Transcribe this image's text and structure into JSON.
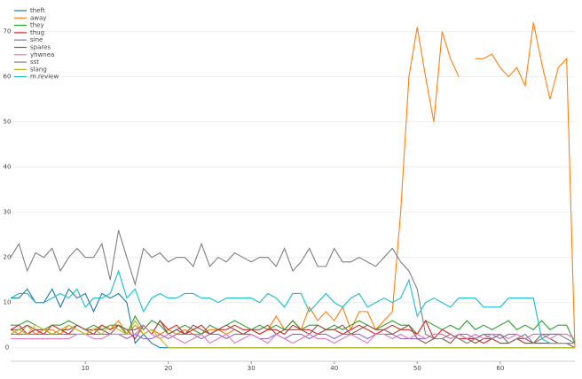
{
  "chart_data": {
    "type": "line",
    "x": [
      1,
      2,
      3,
      4,
      5,
      6,
      7,
      8,
      9,
      10,
      11,
      12,
      13,
      14,
      15,
      16,
      17,
      18,
      19,
      20,
      21,
      22,
      23,
      24,
      25,
      26,
      27,
      28,
      29,
      30,
      31,
      32,
      33,
      34,
      35,
      36,
      37,
      38,
      39,
      40,
      41,
      42,
      43,
      44,
      45,
      46,
      47,
      48,
      49,
      50,
      51,
      52,
      53,
      54,
      55,
      56,
      57,
      58,
      59,
      60,
      61,
      62,
      63,
      64,
      65,
      66,
      67,
      68,
      69
    ],
    "xlim": [
      1,
      69
    ],
    "xticks": [
      10,
      20,
      30,
      40,
      50,
      60
    ],
    "ylim": [
      -3,
      76
    ],
    "yticks": [
      0,
      10,
      20,
      30,
      40,
      50,
      60,
      70
    ],
    "grid": true,
    "legend": "upper left",
    "series": [
      {
        "name": "theft",
        "color": "#1f77b4",
        "values": [
          11,
          11,
          13,
          10,
          10,
          13,
          9,
          13,
          11,
          12,
          8,
          12,
          11,
          12,
          10,
          1,
          3,
          1,
          0,
          0,
          0,
          0,
          0,
          0,
          0,
          0,
          0,
          0,
          0,
          0,
          0,
          0,
          0,
          0,
          0,
          0,
          0,
          0,
          0,
          0,
          0,
          0,
          0,
          0,
          0,
          0,
          0,
          0,
          0,
          0,
          0,
          0,
          0,
          0,
          0,
          0,
          0,
          0,
          0,
          0,
          0,
          0,
          0,
          0,
          0,
          0,
          0,
          0,
          0
        ]
      },
      {
        "name": "away",
        "color": "#ff7f0e",
        "values": [
          4,
          3,
          5,
          3,
          4,
          4,
          3,
          5,
          4,
          3,
          4,
          5,
          4,
          6,
          3,
          5,
          3,
          4,
          3,
          4,
          3,
          4,
          3,
          3,
          4,
          4,
          3,
          4,
          3,
          4,
          3,
          4,
          7,
          4,
          6,
          4,
          9,
          6,
          8,
          6,
          9,
          4,
          8,
          8,
          4,
          6,
          8,
          30,
          60,
          71,
          60,
          50,
          70,
          64,
          60,
          null,
          64,
          64,
          65,
          62,
          60,
          62,
          58,
          72,
          63,
          55,
          62,
          64,
          0
        ]
      },
      {
        "name": "they",
        "color": "#2ca02c",
        "values": [
          5,
          5,
          6,
          5,
          4,
          5,
          5,
          6,
          5,
          4,
          5,
          4,
          5,
          5,
          3,
          7,
          4,
          6,
          5,
          3,
          4,
          5,
          4,
          3,
          5,
          4,
          5,
          6,
          5,
          4,
          5,
          4,
          5,
          4,
          6,
          4,
          5,
          5,
          4,
          5,
          4,
          5,
          6,
          5,
          4,
          5,
          6,
          5,
          5,
          3,
          6,
          5,
          4,
          5,
          4,
          6,
          4,
          5,
          4,
          5,
          6,
          4,
          5,
          4,
          6,
          4,
          5,
          5,
          1
        ]
      },
      {
        "name": "thug",
        "color": "#d62728",
        "values": [
          4,
          5,
          3,
          4,
          3,
          5,
          4,
          3,
          5,
          4,
          3,
          5,
          4,
          5,
          4,
          2,
          5,
          3,
          6,
          4,
          5,
          3,
          4,
          5,
          3,
          4,
          4,
          5,
          4,
          4,
          3,
          4,
          4,
          3,
          5,
          4,
          4,
          3,
          4,
          4,
          3,
          4,
          5,
          4,
          3,
          4,
          5,
          4,
          4,
          3,
          6,
          2,
          4,
          3,
          2,
          2,
          2,
          1,
          2,
          1,
          1,
          2,
          1,
          1,
          1,
          1,
          1,
          1,
          1
        ]
      },
      {
        "name": "sine",
        "color": "#9467bd",
        "values": [
          3,
          3,
          3,
          3,
          3,
          3,
          3,
          3,
          3,
          3,
          3,
          3,
          3,
          3,
          2,
          3,
          2,
          2,
          3,
          2,
          3,
          3,
          3,
          2,
          3,
          3,
          2,
          3,
          3,
          3,
          2,
          2,
          3,
          2,
          3,
          3,
          2,
          3,
          3,
          2,
          3,
          3,
          3,
          2,
          3,
          3,
          3,
          2,
          2,
          2,
          2,
          3,
          3,
          2,
          3,
          3,
          2,
          3,
          3,
          2,
          3,
          3,
          2,
          3,
          3,
          3,
          3,
          3,
          2
        ]
      },
      {
        "name": "spares",
        "color": "#8c564b",
        "values": [
          4,
          4,
          5,
          4,
          4,
          3,
          4,
          4,
          5,
          4,
          4,
          4,
          3,
          5,
          4,
          4,
          5,
          3,
          6,
          3,
          4,
          3,
          5,
          4,
          3,
          4,
          5,
          4,
          3,
          4,
          4,
          5,
          3,
          4,
          4,
          4,
          3,
          5,
          4,
          4,
          5,
          3,
          4,
          5,
          4,
          4,
          3,
          4,
          5,
          2,
          1,
          2,
          2,
          1,
          3,
          2,
          1,
          2,
          2,
          3,
          1,
          2,
          2,
          1,
          3,
          2,
          1,
          1,
          0
        ]
      },
      {
        "name": "yhwnea",
        "color": "#e377c2",
        "values": [
          2,
          2,
          2,
          2,
          2,
          2,
          2,
          2,
          3,
          3,
          2,
          2,
          3,
          3,
          3,
          3,
          5,
          3,
          2,
          3,
          2,
          1,
          2,
          3,
          1,
          2,
          3,
          1,
          2,
          3,
          2,
          1,
          3,
          2,
          1,
          2,
          3,
          2,
          2,
          1,
          2,
          3,
          2,
          1,
          3,
          3,
          2,
          3,
          2,
          3,
          2,
          3,
          3,
          2,
          3,
          2,
          3,
          2,
          3,
          3,
          2,
          3,
          2,
          3,
          3,
          2,
          3,
          3,
          2
        ]
      },
      {
        "name": "sst",
        "color": "#7f7f7f",
        "values": [
          20,
          23,
          17,
          21,
          20,
          22,
          17,
          20,
          22,
          20,
          20,
          23,
          15,
          26,
          20,
          14,
          22,
          20,
          21,
          19,
          20,
          20,
          18,
          23,
          18,
          20,
          19,
          21,
          20,
          19,
          20,
          20,
          18,
          22,
          17,
          19,
          22,
          18,
          18,
          22,
          19,
          19,
          20,
          19,
          18,
          20,
          22,
          19,
          17,
          13,
          3,
          2,
          2,
          3,
          2,
          1,
          2,
          3,
          2,
          3,
          1,
          2,
          3,
          1,
          2,
          3,
          3,
          2,
          1
        ]
      },
      {
        "name": "slang",
        "color": "#bcbd22",
        "values": [
          3,
          4,
          3,
          5,
          4,
          3,
          4,
          5,
          4,
          3,
          4,
          3,
          5,
          4,
          3,
          6,
          3,
          4,
          2,
          0,
          0,
          0,
          0,
          0,
          0,
          0,
          0,
          0,
          0,
          0,
          0,
          0,
          0,
          0,
          0,
          0,
          0,
          0,
          0,
          0,
          0,
          0,
          0,
          0,
          0,
          0,
          0,
          0,
          0,
          0,
          0,
          0,
          0,
          0,
          0,
          0,
          0,
          0,
          0,
          0,
          0,
          0,
          0,
          0,
          0,
          0,
          0,
          0,
          0
        ]
      },
      {
        "name": "m.review",
        "color": "#17becf",
        "values": [
          11,
          12,
          12,
          10,
          10,
          11,
          12,
          11,
          13,
          9,
          11,
          11,
          12,
          17,
          11,
          13,
          8,
          11,
          12,
          11,
          11,
          12,
          12,
          11,
          11,
          10,
          11,
          11,
          11,
          11,
          10,
          12,
          11,
          9,
          12,
          12,
          8,
          10,
          12,
          10,
          9,
          11,
          12,
          9,
          10,
          11,
          10,
          11,
          15,
          7,
          10,
          11,
          10,
          9,
          11,
          11,
          11,
          9,
          9,
          9,
          11,
          11,
          11,
          11,
          2,
          1,
          1,
          1,
          1
        ]
      }
    ]
  }
}
